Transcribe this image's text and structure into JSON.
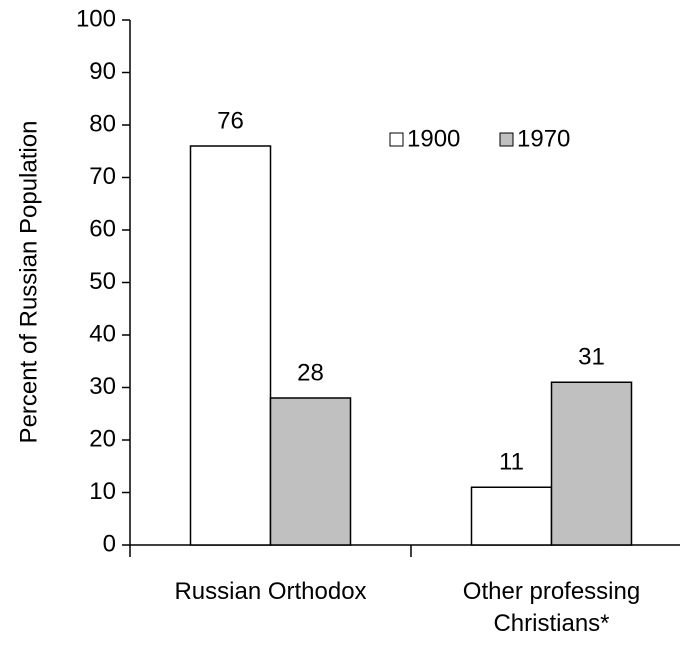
{
  "chart_data": {
    "type": "bar",
    "y_label": "Percent of Russian Population",
    "categories": [
      "Russian Orthodox",
      "Other professing Christians*"
    ],
    "series": [
      {
        "name": "1900",
        "color": "#ffffff",
        "values": [
          76,
          11
        ]
      },
      {
        "name": "1970",
        "color": "#c0c0c0",
        "values": [
          28,
          31
        ]
      }
    ],
    "ylim": [
      0,
      100
    ],
    "yticks": [
      0,
      10,
      20,
      30,
      40,
      50,
      60,
      70,
      80,
      90,
      100
    ],
    "grid": false,
    "legend": "top-right"
  }
}
